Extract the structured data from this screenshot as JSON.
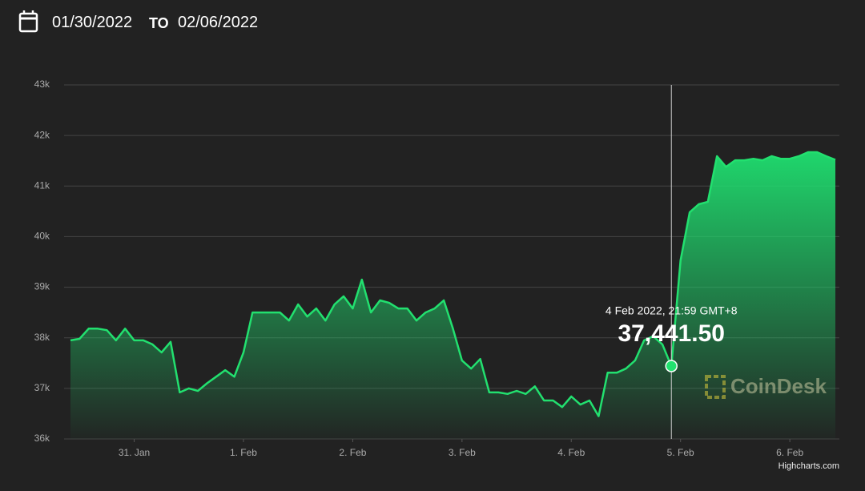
{
  "header": {
    "from": "01/30/2022",
    "to_label": "TO",
    "to": "02/06/2022"
  },
  "chart_data": {
    "type": "area",
    "watermark": "CoinDesk",
    "credits": "Highcharts.com",
    "x": [
      "2022-01-30 10:00",
      "2022-01-30 12:00",
      "2022-01-30 14:00",
      "2022-01-30 16:00",
      "2022-01-30 18:00",
      "2022-01-30 20:00",
      "2022-01-30 22:00",
      "2022-01-31 00:00",
      "2022-01-31 02:00",
      "2022-01-31 04:00",
      "2022-01-31 06:00",
      "2022-01-31 08:00",
      "2022-01-31 10:00",
      "2022-01-31 12:00",
      "2022-01-31 14:00",
      "2022-01-31 16:00",
      "2022-01-31 18:00",
      "2022-01-31 20:00",
      "2022-01-31 22:00",
      "2022-02-01 00:00",
      "2022-02-01 02:00",
      "2022-02-01 04:00",
      "2022-02-01 06:00",
      "2022-02-01 08:00",
      "2022-02-01 10:00",
      "2022-02-01 12:00",
      "2022-02-01 14:00",
      "2022-02-01 16:00",
      "2022-02-01 18:00",
      "2022-02-01 20:00",
      "2022-02-01 22:00",
      "2022-02-02 00:00",
      "2022-02-02 02:00",
      "2022-02-02 04:00",
      "2022-02-02 06:00",
      "2022-02-02 08:00",
      "2022-02-02 10:00",
      "2022-02-02 12:00",
      "2022-02-02 14:00",
      "2022-02-02 16:00",
      "2022-02-02 18:00",
      "2022-02-02 20:00",
      "2022-02-02 22:00",
      "2022-02-03 00:00",
      "2022-02-03 02:00",
      "2022-02-03 04:00",
      "2022-02-03 06:00",
      "2022-02-03 08:00",
      "2022-02-03 10:00",
      "2022-02-03 12:00",
      "2022-02-03 14:00",
      "2022-02-03 16:00",
      "2022-02-03 18:00",
      "2022-02-03 20:00",
      "2022-02-03 22:00",
      "2022-02-04 00:00",
      "2022-02-04 02:00",
      "2022-02-04 04:00",
      "2022-02-04 06:00",
      "2022-02-04 08:00",
      "2022-02-04 10:00",
      "2022-02-04 12:00",
      "2022-02-04 14:00",
      "2022-02-04 16:00",
      "2022-02-04 18:00",
      "2022-02-04 20:00",
      "2022-02-04 21:59",
      "2022-02-05 00:00",
      "2022-02-05 02:00",
      "2022-02-05 04:00",
      "2022-02-05 06:00",
      "2022-02-05 08:00",
      "2022-02-05 10:00",
      "2022-02-05 12:00",
      "2022-02-05 14:00",
      "2022-02-05 16:00",
      "2022-02-05 18:00",
      "2022-02-05 20:00",
      "2022-02-05 22:00",
      "2022-02-06 00:00",
      "2022-02-06 02:00",
      "2022-02-06 04:00",
      "2022-02-06 06:00",
      "2022-02-06 08:00",
      "2022-02-06 10:00"
    ],
    "values": [
      37950,
      37980,
      38180,
      38180,
      38150,
      37950,
      38180,
      37950,
      37950,
      37870,
      37710,
      37920,
      36920,
      37000,
      36950,
      37100,
      37230,
      37360,
      37230,
      37710,
      38500,
      38500,
      38500,
      38500,
      38340,
      38660,
      38420,
      38580,
      38340,
      38660,
      38820,
      38580,
      39150,
      38500,
      38740,
      38690,
      38580,
      38580,
      38340,
      38500,
      38580,
      38740,
      38180,
      37550,
      37390,
      37580,
      36920,
      36920,
      36890,
      36950,
      36890,
      37040,
      36760,
      36760,
      36630,
      36840,
      36680,
      36760,
      36450,
      37310,
      37310,
      37390,
      37550,
      37950,
      38030,
      37870,
      37441.5,
      39530,
      40480,
      40640,
      40690,
      41590,
      41380,
      41510,
      41510,
      41540,
      41510,
      41590,
      41540,
      41540,
      41590,
      41670,
      41670,
      41590,
      41520
    ],
    "color": "#22e06f",
    "xlim": [
      "2022-01-30 08:36",
      "2022-02-06 10:53"
    ],
    "xticks": [
      {
        "value": "2022-01-31 00:00",
        "label": "31. Jan"
      },
      {
        "value": "2022-02-01 00:00",
        "label": "1. Feb"
      },
      {
        "value": "2022-02-02 00:00",
        "label": "2. Feb"
      },
      {
        "value": "2022-02-03 00:00",
        "label": "3. Feb"
      },
      {
        "value": "2022-02-04 00:00",
        "label": "4. Feb"
      },
      {
        "value": "2022-02-05 00:00",
        "label": "5. Feb"
      },
      {
        "value": "2022-02-06 00:00",
        "label": "6. Feb"
      }
    ],
    "ylim": [
      36000,
      43000
    ],
    "yticks": [
      {
        "value": 36000,
        "label": "36k"
      },
      {
        "value": 37000,
        "label": "37k"
      },
      {
        "value": 38000,
        "label": "38k"
      },
      {
        "value": 39000,
        "label": "39k"
      },
      {
        "value": 40000,
        "label": "40k"
      },
      {
        "value": 41000,
        "label": "41k"
      },
      {
        "value": 42000,
        "label": "42k"
      },
      {
        "value": 43000,
        "label": "43k"
      }
    ],
    "grid": true,
    "tooltip": {
      "x": "2022-02-04 21:59",
      "value": 37441.5,
      "label": "4 Feb 2022, 21:59 GMT+8",
      "value_label": "37,441.50"
    }
  }
}
